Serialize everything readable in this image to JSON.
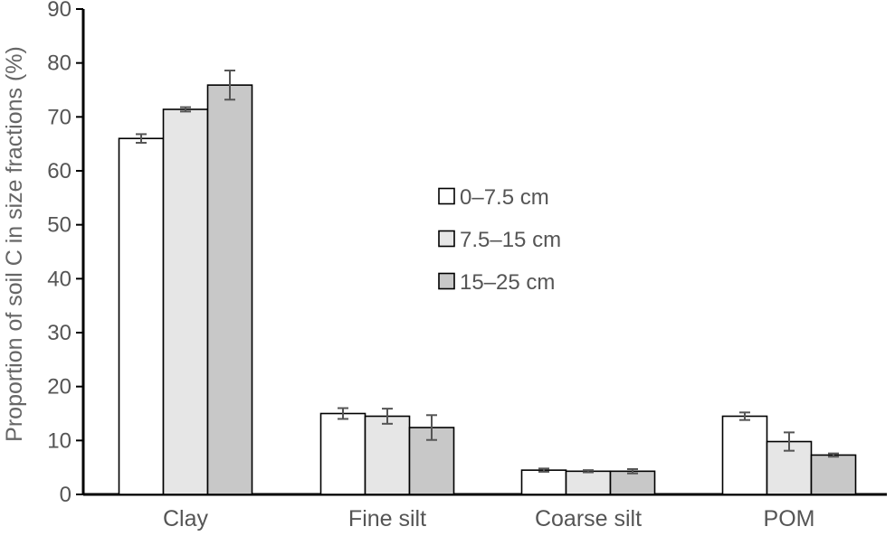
{
  "chart_data": {
    "type": "bar",
    "title": "",
    "xlabel": "",
    "ylabel": "Proportion of soil C in size fractions (%)",
    "ylim": [
      0,
      90
    ],
    "yticks": [
      0,
      10,
      20,
      30,
      40,
      50,
      60,
      70,
      80,
      90
    ],
    "categories": [
      "Clay",
      "Fine silt",
      "Coarse silt",
      "POM"
    ],
    "series": [
      {
        "name": "0–7.5 cm",
        "color": "#ffffff",
        "values": [
          66.0,
          15.0,
          4.5,
          14.5
        ],
        "errors": [
          0.8,
          1.0,
          0.3,
          0.7
        ]
      },
      {
        "name": "7.5–15 cm",
        "color": "#e6e6e6",
        "values": [
          71.4,
          14.5,
          4.3,
          9.8
        ],
        "errors": [
          0.4,
          1.4,
          0.2,
          1.7
        ]
      },
      {
        "name": "15–25 cm",
        "color": "#c8c8c8",
        "values": [
          75.9,
          12.4,
          4.3,
          7.3
        ],
        "errors": [
          2.7,
          2.3,
          0.4,
          0.3
        ]
      }
    ],
    "error_bars": true,
    "grid": false,
    "legend_position": "center-right"
  }
}
